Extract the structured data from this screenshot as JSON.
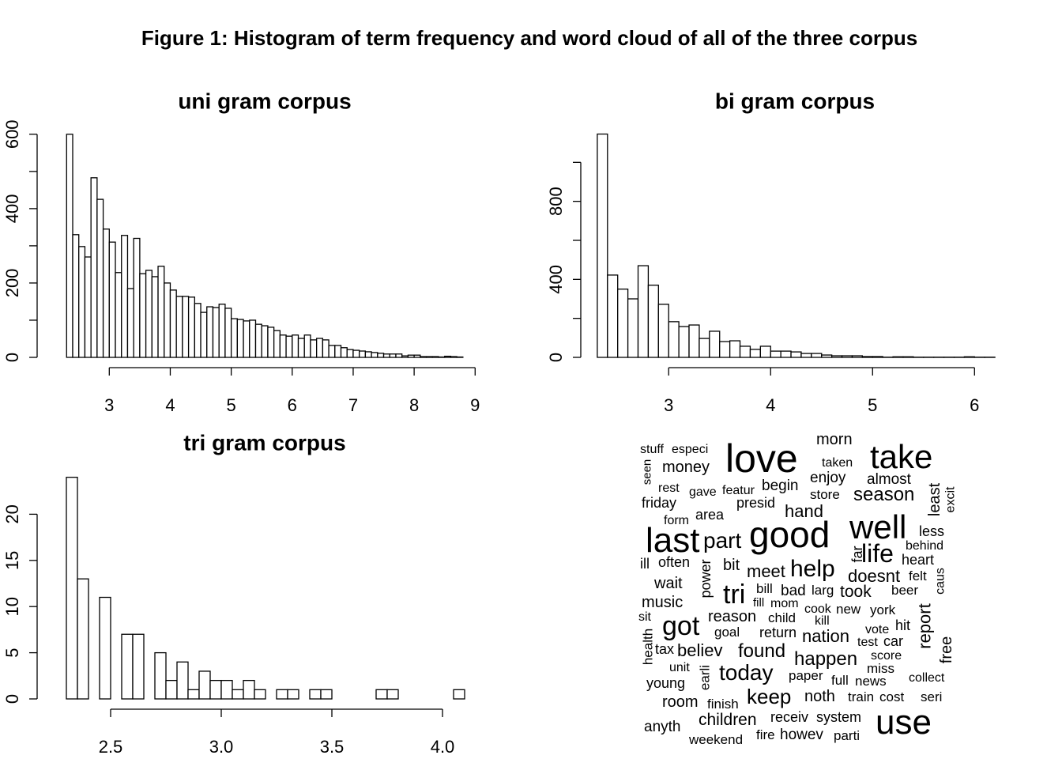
{
  "title": "Figure 1: Histogram of term frequency and word cloud of all of the three corpus",
  "chart_data": [
    {
      "type": "histogram",
      "title": "uni gram corpus",
      "bins": [
        2.3,
        2.4,
        2.5,
        2.6,
        2.7,
        2.8,
        2.9,
        3.0,
        3.1,
        3.2,
        3.3,
        3.4,
        3.5,
        3.6,
        3.7,
        3.8,
        3.9,
        4.0,
        4.1,
        4.2,
        4.3,
        4.4,
        4.5,
        4.6,
        4.7,
        4.8,
        4.9,
        5.0,
        5.1,
        5.2,
        5.3,
        5.4,
        5.5,
        5.6,
        5.7,
        5.8,
        5.9,
        6.0,
        6.1,
        6.2,
        6.3,
        6.4,
        6.5,
        6.6,
        6.7,
        6.8,
        6.9,
        7.0,
        7.1,
        7.2,
        7.3,
        7.4,
        7.5,
        7.6,
        7.7,
        7.8,
        7.9,
        8.0,
        8.1,
        8.2,
        8.3,
        8.4,
        8.5,
        8.6,
        8.7,
        8.8
      ],
      "values": [
        600,
        330,
        298,
        270,
        483,
        425,
        345,
        310,
        228,
        328,
        185,
        320,
        225,
        234,
        217,
        245,
        200,
        181,
        164,
        164,
        162,
        145,
        121,
        136,
        134,
        143,
        132,
        104,
        102,
        98,
        100,
        89,
        85,
        81,
        72,
        60,
        57,
        60,
        51,
        60,
        47,
        51,
        47,
        32,
        32,
        26,
        21,
        19,
        17,
        15,
        13,
        11,
        9,
        9,
        9,
        4,
        6,
        6,
        2,
        2,
        2,
        1,
        3,
        2,
        1
      ],
      "color": "#ffffff",
      "xlim": [
        2.05,
        9.1
      ],
      "xticks": [
        3,
        4,
        5,
        6,
        7,
        8,
        9
      ],
      "ylim": [
        0,
        640
      ],
      "yticks": [
        0,
        {
          "value": 100,
          "label": null
        },
        200,
        {
          "value": 300,
          "label": null
        },
        400,
        {
          "value": 500,
          "label": null
        },
        600
      ]
    },
    {
      "type": "histogram",
      "title": "bi gram corpus",
      "bins": [
        2.3,
        2.4,
        2.5,
        2.6,
        2.7,
        2.8,
        2.9,
        3.0,
        3.1,
        3.2,
        3.3,
        3.4,
        3.5,
        3.6,
        3.7,
        3.8,
        3.9,
        4.0,
        4.1,
        4.2,
        4.3,
        4.4,
        4.5,
        4.6,
        4.7,
        4.8,
        4.9,
        5.0,
        5.1,
        5.2,
        5.3,
        5.4,
        5.5,
        5.6,
        5.7,
        5.8,
        5.9,
        6.0,
        6.1,
        6.2
      ],
      "values": [
        1145,
        422,
        350,
        300,
        470,
        370,
        272,
        183,
        158,
        166,
        97,
        134,
        81,
        85,
        57,
        41,
        57,
        32,
        32,
        28,
        20,
        20,
        12,
        8,
        8,
        8,
        4,
        4,
        1,
        3,
        3,
        1,
        1,
        1,
        1,
        1,
        3,
        1,
        1
      ],
      "color": "#ffffff",
      "xlim": [
        2.2,
        6.3
      ],
      "xticks": [
        3,
        4,
        5,
        6
      ],
      "ylim": [
        0,
        1200
      ],
      "yticks": [
        0,
        {
          "value": 200,
          "label": null
        },
        400,
        {
          "value": 600,
          "label": null
        },
        800,
        {
          "value": 1000,
          "label": null
        }
      ]
    },
    {
      "type": "histogram",
      "title": "tri gram corpus",
      "bins": [
        2.3,
        2.35,
        2.4,
        2.45,
        2.5,
        2.55,
        2.6,
        2.65,
        2.7,
        2.75,
        2.8,
        2.85,
        2.9,
        2.95,
        3.0,
        3.05,
        3.1,
        3.15,
        3.2,
        3.25,
        3.3,
        3.35,
        3.4,
        3.45,
        3.5,
        3.55,
        3.6,
        3.65,
        3.7,
        3.75,
        3.8,
        3.85,
        3.9,
        3.95,
        4.0,
        4.05,
        4.1
      ],
      "values": [
        24,
        13,
        0,
        11,
        0,
        7,
        7,
        0,
        5,
        2,
        4,
        1,
        3,
        2,
        2,
        1,
        2,
        1,
        0,
        1,
        1,
        0,
        1,
        1,
        0,
        0,
        0,
        0,
        1,
        1,
        0,
        0,
        0,
        0,
        0,
        1
      ],
      "color": "#ffffff",
      "xlim": [
        2.25,
        4.15
      ],
      "xticks": [
        2.5,
        {
          "value": 3,
          "label": "3.0"
        },
        3.5,
        {
          "value": 4,
          "label": "4.0"
        }
      ],
      "ylim": [
        0,
        25
      ],
      "yticks": [
        0,
        5,
        10,
        15,
        20
      ]
    },
    {
      "type": "wordcloud",
      "color": "#000000",
      "words": [
        "stuff",
        "especi",
        "seen",
        "morn",
        "love",
        "take",
        "money",
        "taken",
        "enjoy",
        "almost",
        "rest",
        "gave",
        "featur",
        "begin",
        "store",
        "season",
        "least",
        "excit",
        "friday",
        "presid",
        "hand",
        "form",
        "area",
        "well",
        "last",
        "part",
        "good",
        "less",
        "behind",
        "life",
        "far",
        "heart",
        "ill",
        "often",
        "power",
        "bit",
        "meet",
        "help",
        "doesnt",
        "felt",
        "caus",
        "wait",
        "tri",
        "bill",
        "bad",
        "larg",
        "took",
        "beer",
        "music",
        "fill",
        "mom",
        "cook",
        "new",
        "york",
        "sit",
        "report",
        "reason",
        "child",
        "kill",
        "got",
        "goal",
        "vote",
        "hit",
        "health",
        "return",
        "nation",
        "test",
        "car",
        "free",
        "tax",
        "believ",
        "found",
        "happen",
        "score",
        "unit",
        "earli",
        "today",
        "miss",
        "young",
        "paper",
        "full",
        "news",
        "collect",
        "room",
        "finish",
        "keep",
        "noth",
        "train",
        "cost",
        "seri",
        "anyth",
        "children",
        "receiv",
        "system",
        "use",
        "weekend",
        "fire",
        "howev",
        "parti"
      ],
      "values": [
        16,
        16,
        15,
        20,
        50,
        42,
        20,
        16,
        19,
        19,
        16,
        16,
        16,
        19,
        17,
        24,
        20,
        16,
        18,
        18,
        22,
        16,
        18,
        42,
        44,
        28,
        46,
        18,
        16,
        32,
        18,
        18,
        18,
        18,
        18,
        20,
        22,
        30,
        22,
        17,
        16,
        20,
        34,
        17,
        19,
        17,
        21,
        17,
        20,
        15,
        16,
        16,
        17,
        17,
        16,
        22,
        20,
        17,
        16,
        34,
        17,
        16,
        18,
        17,
        18,
        22,
        16,
        18,
        20,
        18,
        22,
        24,
        24,
        16,
        16,
        17,
        28,
        17,
        18,
        17,
        17,
        17,
        16,
        20,
        17,
        26,
        20,
        17,
        17,
        17,
        19,
        21,
        18,
        18,
        44,
        17,
        17,
        19,
        17
      ],
      "vertical": [
        false,
        false,
        true,
        false,
        false,
        false,
        false,
        false,
        false,
        false,
        false,
        false,
        false,
        false,
        false,
        false,
        true,
        true,
        false,
        false,
        false,
        false,
        false,
        false,
        false,
        false,
        false,
        false,
        false,
        false,
        true,
        false,
        false,
        false,
        true,
        false,
        false,
        false,
        false,
        false,
        true,
        false,
        false,
        false,
        false,
        false,
        false,
        false,
        false,
        false,
        false,
        false,
        false,
        false,
        false,
        true,
        false,
        false,
        false,
        false,
        false,
        false,
        false,
        true,
        false,
        false,
        false,
        false,
        true,
        false,
        false,
        false,
        false,
        false,
        false,
        true,
        false,
        false,
        false,
        false,
        false,
        false,
        false,
        false,
        false,
        false,
        false,
        false,
        false,
        false,
        false,
        false,
        false,
        false,
        false,
        false,
        false,
        false,
        false
      ]
    }
  ]
}
